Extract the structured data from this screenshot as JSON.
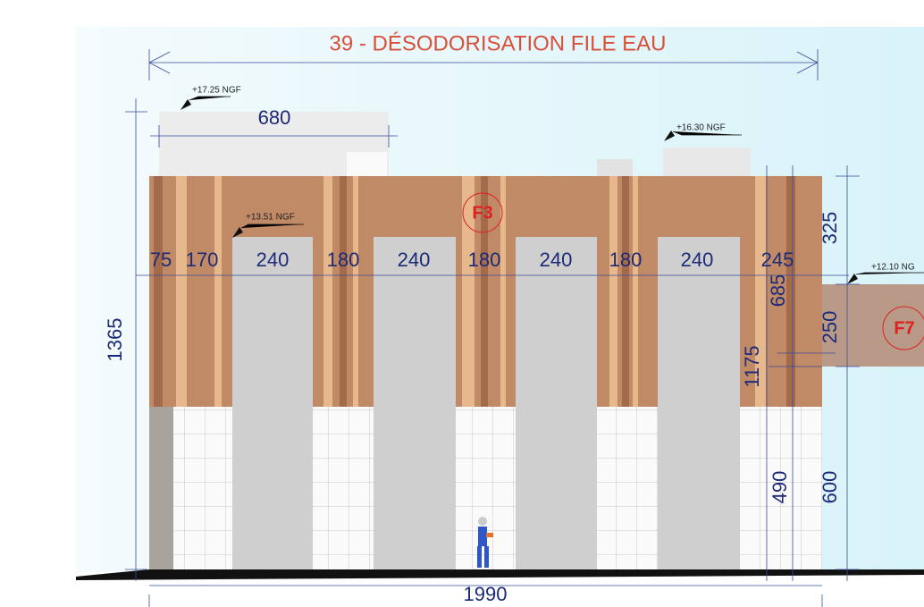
{
  "title": "39 - DÉSODORISATION FILE EAU",
  "levels": [
    "+17.25 NGF",
    "+16.30 NGF",
    "+13.51 NGF",
    "+12.10 NG"
  ],
  "facades": [
    "F3",
    "F7"
  ],
  "dimensions": {
    "top_width": "680",
    "widths": [
      "75",
      "170",
      "240",
      "180",
      "240",
      "180",
      "240",
      "180",
      "240",
      "245"
    ],
    "total_width": "1990",
    "heights": {
      "total": "1365",
      "upper": "325",
      "cladding": "685",
      "annex": "250",
      "wall": "1175",
      "lower": "600",
      "base": "490"
    }
  }
}
